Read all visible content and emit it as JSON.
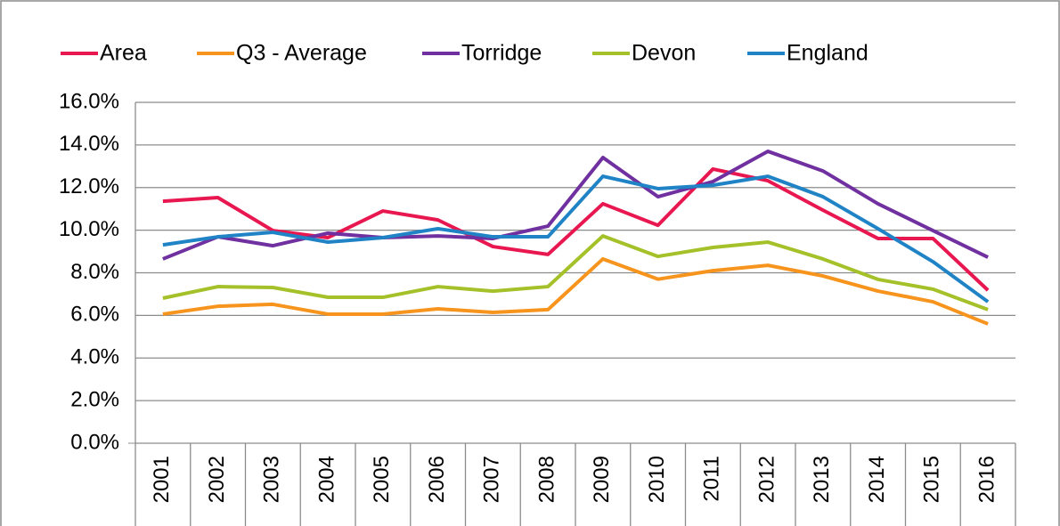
{
  "chart_data": {
    "type": "line",
    "categories": [
      "2001",
      "2002",
      "2003",
      "2004",
      "2005",
      "2006",
      "2007",
      "2008",
      "2009",
      "2010",
      "2011",
      "2012",
      "2013",
      "2014",
      "2015",
      "2016"
    ],
    "series": [
      {
        "name": "Area",
        "color": "#e8174f",
        "values": [
          11.36,
          11.53,
          9.98,
          9.65,
          10.9,
          10.48,
          9.23,
          8.86,
          11.24,
          10.23,
          12.87,
          12.32,
          10.94,
          9.61,
          9.61,
          7.18
        ]
      },
      {
        "name": "Q3 - Average",
        "color": "#f7941d",
        "values": [
          6.06,
          6.43,
          6.52,
          6.06,
          6.06,
          6.31,
          6.14,
          6.27,
          8.65,
          7.7,
          8.1,
          8.35,
          7.85,
          7.14,
          6.64,
          5.6
        ]
      },
      {
        "name": "Torridge",
        "color": "#7030a0",
        "values": [
          8.65,
          9.69,
          9.27,
          9.86,
          9.65,
          9.73,
          9.61,
          10.19,
          13.41,
          11.57,
          12.28,
          13.7,
          12.78,
          11.24,
          9.98,
          8.73
        ]
      },
      {
        "name": "Devon",
        "color": "#a4c12a",
        "values": [
          6.81,
          7.35,
          7.31,
          6.85,
          6.85,
          7.35,
          7.14,
          7.35,
          9.73,
          8.77,
          9.19,
          9.44,
          8.65,
          7.69,
          7.23,
          6.27
        ]
      },
      {
        "name": "England",
        "color": "#1f83c6",
        "values": [
          9.31,
          9.69,
          9.9,
          9.44,
          9.65,
          10.07,
          9.69,
          9.69,
          12.53,
          11.95,
          12.11,
          12.53,
          11.57,
          10.07,
          8.52,
          6.64
        ]
      }
    ],
    "ylim": [
      0,
      16
    ],
    "yticks": [
      {
        "value": 0,
        "label": "0.0%"
      },
      {
        "value": 2,
        "label": "2.0%"
      },
      {
        "value": 4,
        "label": "4.0%"
      },
      {
        "value": 6,
        "label": "6.0%"
      },
      {
        "value": 8,
        "label": "8.0%"
      },
      {
        "value": 10,
        "label": "10.0%"
      },
      {
        "value": 12,
        "label": "12.0%"
      },
      {
        "value": 14,
        "label": "14.0%"
      },
      {
        "value": 16,
        "label": "16.0%"
      }
    ],
    "grid": true,
    "legend": "top"
  }
}
